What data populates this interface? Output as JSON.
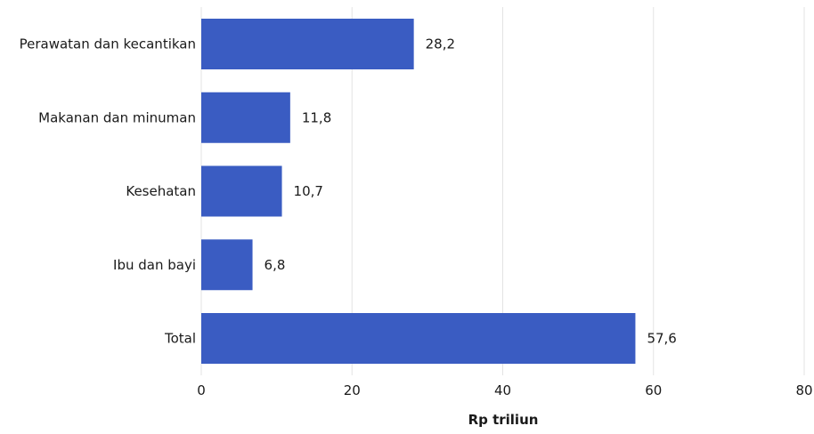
{
  "chart_data": {
    "type": "bar",
    "orientation": "horizontal",
    "categories": [
      "Perawatan dan kecantikan",
      "Makanan dan minuman",
      "Kesehatan",
      "Ibu dan bayi",
      "Total"
    ],
    "values": [
      28.2,
      11.8,
      10.7,
      6.8,
      57.6
    ],
    "value_labels": [
      "28,2",
      "11,8",
      "10,7",
      "6,8",
      "57,6"
    ],
    "xlabel": "Rp triliun",
    "ylabel": "",
    "xlim": [
      0,
      80
    ],
    "xticks": [
      0,
      20,
      40,
      60,
      80
    ],
    "xtick_labels": [
      "0",
      "20",
      "40",
      "60",
      "80"
    ],
    "grid": true,
    "bar_color": "#3a5cc2"
  }
}
